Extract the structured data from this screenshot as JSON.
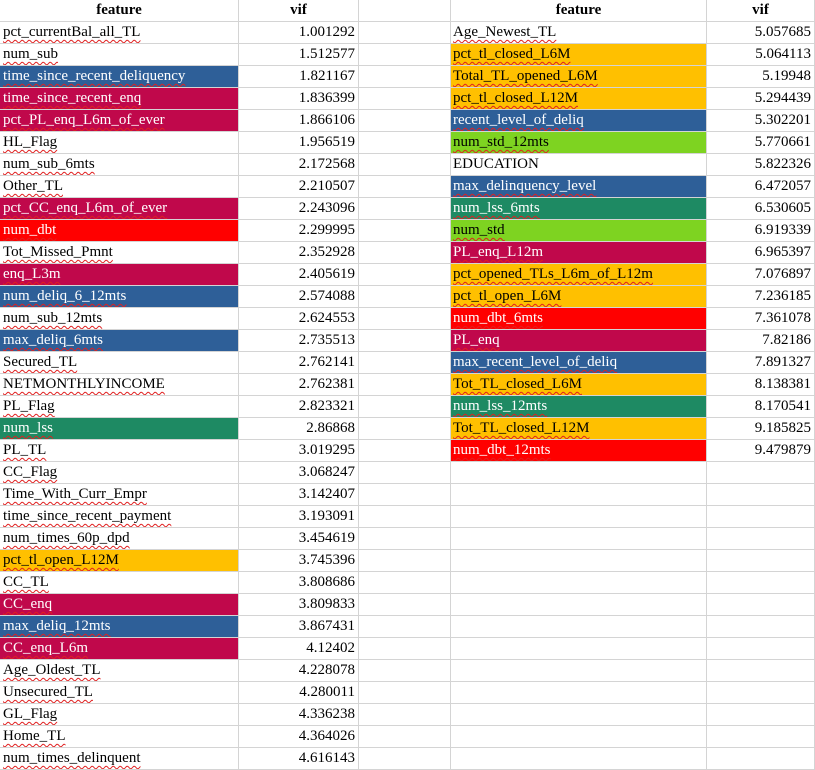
{
  "header": {
    "feature_left": "feature",
    "vif_left": "vif",
    "feature_right": "feature",
    "vif_right": "vif"
  },
  "colors": {
    "blue": "#2e5f98",
    "crimson": "#c0084b",
    "red": "#ff0000",
    "green": "#1e8a63",
    "orange": "#ffc000",
    "lime": "#7ed321"
  },
  "left_rows": [
    {
      "feature": "pct_currentBal_all_TL",
      "vif": "1.001292",
      "color": "white"
    },
    {
      "feature": "num_sub",
      "vif": "1.512577",
      "color": "white"
    },
    {
      "feature": "time_since_recent_deliquency",
      "vif": "1.821167",
      "color": "blue"
    },
    {
      "feature": "time_since_recent_enq",
      "vif": "1.836399",
      "color": "crimson"
    },
    {
      "feature": "pct_PL_enq_L6m_of_ever",
      "vif": "1.866106",
      "color": "crimson"
    },
    {
      "feature": "HL_Flag",
      "vif": "1.956519",
      "color": "white"
    },
    {
      "feature": "num_sub_6mts",
      "vif": "2.172568",
      "color": "white"
    },
    {
      "feature": "Other_TL",
      "vif": "2.210507",
      "color": "white"
    },
    {
      "feature": "pct_CC_enq_L6m_of_ever",
      "vif": "2.243096",
      "color": "crimson"
    },
    {
      "feature": "num_dbt",
      "vif": "2.299995",
      "color": "red"
    },
    {
      "feature": "Tot_Missed_Pmnt",
      "vif": "2.352928",
      "color": "white"
    },
    {
      "feature": "enq_L3m",
      "vif": "2.405619",
      "color": "crimson"
    },
    {
      "feature": "num_deliq_6_12mts",
      "vif": "2.574088",
      "color": "blue"
    },
    {
      "feature": "num_sub_12mts",
      "vif": "2.624553",
      "color": "white"
    },
    {
      "feature": "max_deliq_6mts",
      "vif": "2.735513",
      "color": "blue"
    },
    {
      "feature": "Secured_TL",
      "vif": "2.762141",
      "color": "white"
    },
    {
      "feature": "NETMONTHLYINCOME",
      "vif": "2.762381",
      "color": "white"
    },
    {
      "feature": "PL_Flag",
      "vif": "2.823321",
      "color": "white"
    },
    {
      "feature": "num_lss",
      "vif": "2.86868",
      "color": "green"
    },
    {
      "feature": "PL_TL",
      "vif": "3.019295",
      "color": "white"
    },
    {
      "feature": "CC_Flag",
      "vif": "3.068247",
      "color": "white"
    },
    {
      "feature": "Time_With_Curr_Empr",
      "vif": "3.142407",
      "color": "white"
    },
    {
      "feature": "time_since_recent_payment",
      "vif": "3.193091",
      "color": "white"
    },
    {
      "feature": "num_times_60p_dpd",
      "vif": "3.454619",
      "color": "white"
    },
    {
      "feature": "pct_tl_open_L12M",
      "vif": "3.745396",
      "color": "orange"
    },
    {
      "feature": "CC_TL",
      "vif": "3.808686",
      "color": "white"
    },
    {
      "feature": "CC_enq",
      "vif": "3.809833",
      "color": "crimson"
    },
    {
      "feature": "max_deliq_12mts",
      "vif": "3.867431",
      "color": "blue"
    },
    {
      "feature": "CC_enq_L6m",
      "vif": "4.12402",
      "color": "crimson"
    },
    {
      "feature": "Age_Oldest_TL",
      "vif": "4.228078",
      "color": "white"
    },
    {
      "feature": "Unsecured_TL",
      "vif": "4.280011",
      "color": "white"
    },
    {
      "feature": "GL_Flag",
      "vif": "4.336238",
      "color": "white"
    },
    {
      "feature": "Home_TL",
      "vif": "4.364026",
      "color": "white"
    },
    {
      "feature": "num_times_delinquent",
      "vif": "4.616143",
      "color": "white"
    }
  ],
  "right_rows": [
    {
      "feature": "Age_Newest_TL",
      "vif": "5.057685",
      "color": "white"
    },
    {
      "feature": "pct_tl_closed_L6M",
      "vif": "5.064113",
      "color": "orange"
    },
    {
      "feature": "Total_TL_opened_L6M",
      "vif": "5.19948",
      "color": "orange"
    },
    {
      "feature": "pct_tl_closed_L12M",
      "vif": "5.294439",
      "color": "orange"
    },
    {
      "feature": "recent_level_of_deliq",
      "vif": "5.302201",
      "color": "blue"
    },
    {
      "feature": "num_std_12mts",
      "vif": "5.770661",
      "color": "lime"
    },
    {
      "feature": "EDUCATION",
      "vif": "5.822326",
      "color": "white"
    },
    {
      "feature": "max_delinquency_level",
      "vif": "6.472057",
      "color": "blue"
    },
    {
      "feature": "num_lss_6mts",
      "vif": "6.530605",
      "color": "green"
    },
    {
      "feature": "num_std",
      "vif": "6.919339",
      "color": "lime"
    },
    {
      "feature": "PL_enq_L12m",
      "vif": "6.965397",
      "color": "crimson"
    },
    {
      "feature": "pct_opened_TLs_L6m_of_L12m",
      "vif": "7.076897",
      "color": "orange"
    },
    {
      "feature": "pct_tl_open_L6M",
      "vif": "7.236185",
      "color": "orange"
    },
    {
      "feature": "num_dbt_6mts",
      "vif": "7.361078",
      "color": "red"
    },
    {
      "feature": "PL_enq",
      "vif": "7.82186",
      "color": "crimson"
    },
    {
      "feature": "max_recent_level_of_deliq",
      "vif": "7.891327",
      "color": "blue"
    },
    {
      "feature": "Tot_TL_closed_L6M",
      "vif": "8.138381",
      "color": "orange"
    },
    {
      "feature": "num_lss_12mts",
      "vif": "8.170541",
      "color": "green"
    },
    {
      "feature": "Tot_TL_closed_L12M",
      "vif": "9.185825",
      "color": "orange"
    },
    {
      "feature": "num_dbt_12mts",
      "vif": "9.479879",
      "color": "red"
    }
  ]
}
